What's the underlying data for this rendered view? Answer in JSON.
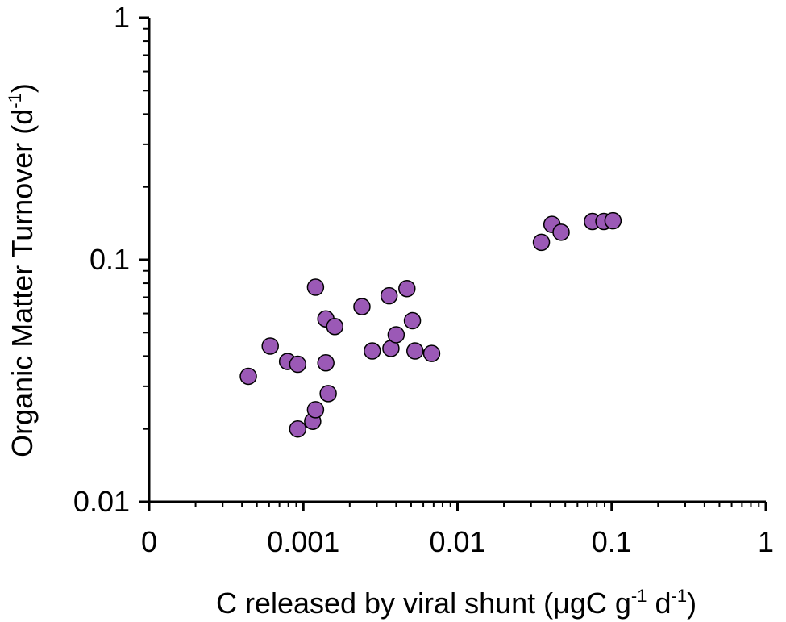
{
  "chart_data": {
    "type": "scatter",
    "xscale": "log",
    "yscale": "log",
    "xlim": [
      0.0001,
      1
    ],
    "ylim": [
      0.01,
      1
    ],
    "x_tick_labels": [
      "0",
      "0.001",
      "0.01",
      "0.1",
      "1"
    ],
    "y_tick_labels": [
      "0.01",
      "0.1",
      "1"
    ],
    "xlabel": {
      "text": "C released by viral shunt (μgC g",
      "sup1": "-1",
      "mid": " d",
      "sup2": "-1",
      "end": ")"
    },
    "ylabel": {
      "text": "Organic Matter Turnover (d",
      "sup": "-1",
      "end": ")"
    },
    "grid": false,
    "legend": "none",
    "marker_color": "#9b59b6",
    "marker_edge_color": "#000000",
    "series": [
      {
        "points": [
          {
            "x": 0.00044,
            "y": 0.033
          },
          {
            "x": 0.00061,
            "y": 0.044
          },
          {
            "x": 0.00079,
            "y": 0.038
          },
          {
            "x": 0.00092,
            "y": 0.037
          },
          {
            "x": 0.00092,
            "y": 0.02
          },
          {
            "x": 0.00115,
            "y": 0.0215
          },
          {
            "x": 0.0012,
            "y": 0.024
          },
          {
            "x": 0.0012,
            "y": 0.077
          },
          {
            "x": 0.0014,
            "y": 0.057
          },
          {
            "x": 0.0014,
            "y": 0.0375
          },
          {
            "x": 0.00145,
            "y": 0.028
          },
          {
            "x": 0.0016,
            "y": 0.053
          },
          {
            "x": 0.0024,
            "y": 0.064
          },
          {
            "x": 0.0028,
            "y": 0.042
          },
          {
            "x": 0.0036,
            "y": 0.071
          },
          {
            "x": 0.0037,
            "y": 0.043
          },
          {
            "x": 0.004,
            "y": 0.049
          },
          {
            "x": 0.0047,
            "y": 0.076
          },
          {
            "x": 0.0051,
            "y": 0.056
          },
          {
            "x": 0.0053,
            "y": 0.042
          },
          {
            "x": 0.0068,
            "y": 0.041
          },
          {
            "x": 0.035,
            "y": 0.118
          },
          {
            "x": 0.041,
            "y": 0.14
          },
          {
            "x": 0.047,
            "y": 0.13
          },
          {
            "x": 0.075,
            "y": 0.144
          },
          {
            "x": 0.089,
            "y": 0.144
          },
          {
            "x": 0.102,
            "y": 0.145
          }
        ]
      }
    ]
  }
}
